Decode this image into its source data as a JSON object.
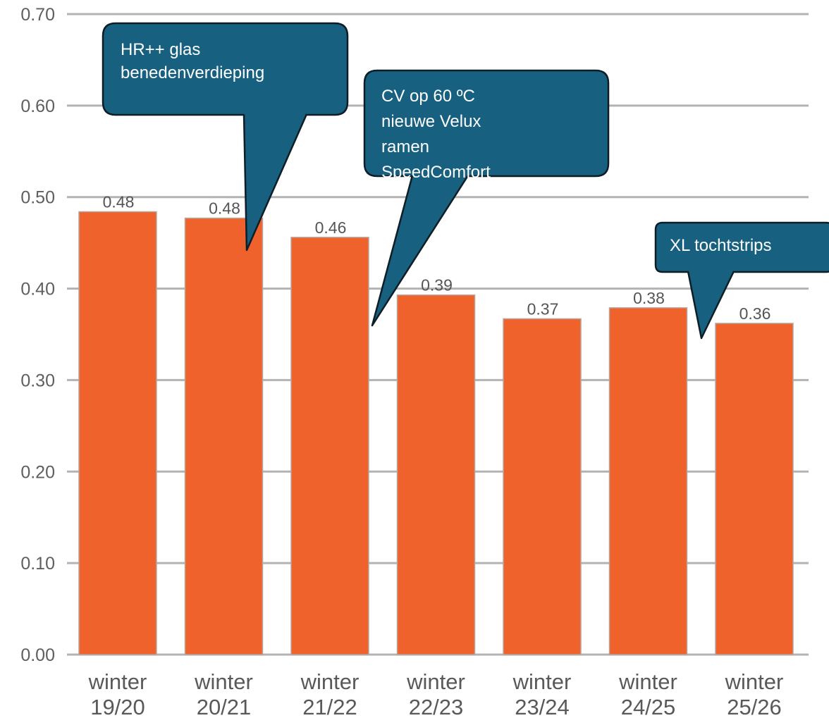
{
  "chart_data": {
    "type": "bar",
    "categories": [
      [
        "winter",
        "19/20"
      ],
      [
        "winter",
        "20/21"
      ],
      [
        "winter",
        "21/22"
      ],
      [
        "winter",
        "22/23"
      ],
      [
        "winter",
        "23/24"
      ],
      [
        "winter",
        "24/25"
      ],
      [
        "winter",
        "25/26"
      ]
    ],
    "values": [
      0.484,
      0.477,
      0.456,
      0.393,
      0.367,
      0.379,
      0.362
    ],
    "data_labels": [
      "0.48",
      "0.48",
      "0.46",
      "0.39",
      "0.37",
      "0.38",
      "0.36"
    ],
    "y_ticks": [
      "0.00",
      "0.10",
      "0.20",
      "0.30",
      "0.40",
      "0.50",
      "0.60",
      "0.70"
    ],
    "ylim": [
      0,
      0.7
    ],
    "grid": true,
    "colors": {
      "bar": "#f0622c",
      "bar_edge": "#b8a59c",
      "grid": "#b3b3b3",
      "callout_fill": "#17607f",
      "callout_edge": "#0d1e26"
    },
    "annotations": [
      {
        "lines": [
          "HR++ glas",
          "benedenverdieping"
        ]
      },
      {
        "lines": [
          "CV op 60 ºC",
          "nieuwe Velux",
          "ramen",
          "SpeedComfort"
        ]
      },
      {
        "lines": [
          "XL tochtstrips"
        ]
      }
    ]
  }
}
